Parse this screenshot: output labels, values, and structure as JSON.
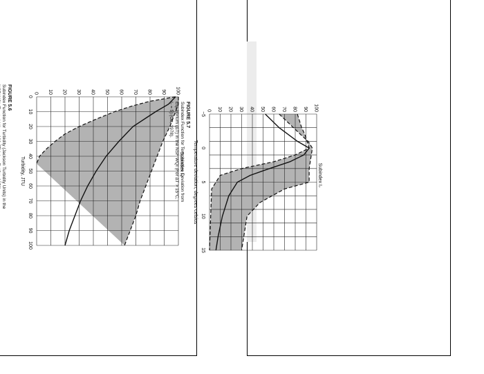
{
  "chart_data": [
    {
      "type": "area",
      "figure_label": "FIGURE 5.6",
      "caption_lines": [
        "Subindex Function for Turbidity (Jackson Turbidity Units) in the",
        "NSF WQI (For turbidity > 100 JTU, I₈ = 5) (Ott, 1978)."
      ],
      "xlabel": "Turbidity, JTU",
      "ylabel": "Subindex I₈",
      "xlim": [
        0,
        100
      ],
      "ylim": [
        0,
        100
      ],
      "xticks": [
        "0",
        "10",
        "20",
        "30",
        "40",
        "50",
        "60",
        "70",
        "80",
        "90",
        "100"
      ],
      "yticks": [
        "0",
        "10",
        "20",
        "30",
        "40",
        "50",
        "60",
        "70",
        "80",
        "90",
        "100"
      ],
      "grid": true,
      "series": [
        {
          "role": "mean",
          "x": [
            0,
            5,
            10,
            15,
            20,
            30,
            40,
            50,
            60,
            70,
            80,
            90,
            100
          ],
          "y": [
            98,
            93,
            84,
            76,
            68,
            58,
            49,
            42,
            36,
            31,
            27,
            23,
            20
          ]
        },
        {
          "role": "upper",
          "x": [
            0,
            5,
            10,
            20,
            30,
            40,
            50,
            60,
            70,
            80,
            90,
            100
          ],
          "y": [
            100,
            100,
            98,
            94,
            89,
            85,
            81,
            77,
            73,
            70,
            66,
            62
          ]
        },
        {
          "role": "lower",
          "x": [
            0,
            3,
            6,
            10,
            15,
            20,
            25,
            30,
            35,
            40,
            45
          ],
          "y": [
            98,
            80,
            68,
            55,
            42,
            30,
            20,
            13,
            7,
            2,
            0
          ]
        }
      ]
    },
    {
      "type": "area",
      "figure_label": "FIGURE 5.7",
      "caption_lines": [
        "Subindex Function for Temperature Deviation from",
        "Equilibrium (ΔT) in the NSF WQI (For ΔT > 15°C,",
        "I₇ = 5) (Ott, 1978)."
      ],
      "xlabel": "Temperature deviation, degrees celsius",
      "ylabel": "Subindex I₇",
      "xlim": [
        -5,
        15
      ],
      "ylim": [
        0,
        100
      ],
      "xticks": [
        "−5",
        "0",
        "5",
        "10",
        "15"
      ],
      "yticks": [
        "0",
        "10",
        "20",
        "30",
        "40",
        "50",
        "60",
        "70",
        "80",
        "90",
        "100"
      ],
      "grid": true,
      "series": [
        {
          "role": "mean",
          "x": [
            -5,
            -3,
            -1,
            0,
            1,
            2,
            3,
            4,
            5,
            7,
            10,
            13,
            15
          ],
          "y": [
            52,
            65,
            82,
            93,
            88,
            75,
            56,
            38,
            26,
            18,
            12,
            8,
            6
          ]
        },
        {
          "role": "upper",
          "x": [
            -5,
            -2,
            -1,
            0,
            1,
            2,
            3,
            4,
            5,
            6,
            8,
            10,
            15
          ],
          "y": [
            65,
            85,
            92,
            96,
            95,
            94,
            93,
            93,
            93,
            70,
            47,
            35,
            30
          ]
        },
        {
          "role": "lower",
          "x": [
            -5,
            -3,
            -2,
            -1,
            0,
            1,
            2,
            3,
            4,
            6,
            15
          ],
          "y": [
            82,
            86,
            89,
            91,
            93,
            80,
            60,
            30,
            10,
            2,
            0
          ]
        }
      ]
    }
  ]
}
